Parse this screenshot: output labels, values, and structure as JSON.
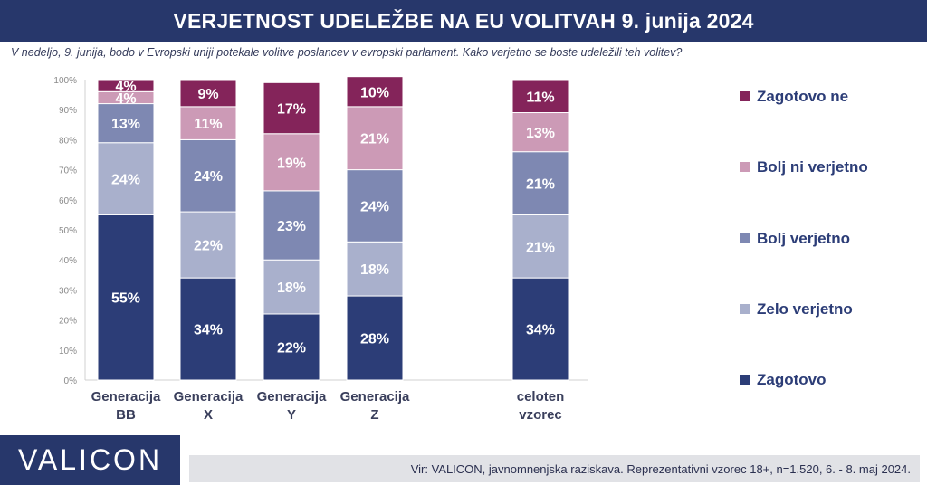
{
  "header": {
    "title": "VERJETNOST UDELEŽBE NA EU VOLITVAH 9. junija 2024"
  },
  "subtitle": "V nedeljo, 9. junija, bodo v Evropski uniji potekale volitve poslancev v evropski parlament.  Kako verjetno se boste udeležili teh volitev?",
  "footer": {
    "logo_text": "VALICON",
    "source": "Vir: VALICON, javnomnenjska raziskava. Reprezentativni vzorec 18+, n=1.520, 6. - 8. maj 2024."
  },
  "colors": {
    "header_bg": "#27376b",
    "zagotovo": "#2c3d77",
    "zelo_verjetno": "#a9b0cc",
    "bolj_verjetno": "#7e88b2",
    "bolj_ni_verjetno": "#cc9ab6",
    "zagotovo_ne": "#84245a"
  },
  "chart_data": {
    "type": "bar",
    "stacked": true,
    "normalized": true,
    "categories": [
      [
        "Generacija",
        "BB"
      ],
      [
        "Generacija",
        "X"
      ],
      [
        "Generacija",
        "Y"
      ],
      [
        "Generacija",
        "Z"
      ],
      [
        "celoten",
        "vzorec"
      ]
    ],
    "series": [
      {
        "name": "Zagotovo",
        "color": "#2c3d77",
        "values": [
          55,
          34,
          22,
          28,
          34
        ]
      },
      {
        "name": "Zelo verjetno",
        "color": "#a9b0cc",
        "values": [
          24,
          22,
          18,
          18,
          21
        ]
      },
      {
        "name": "Bolj verjetno",
        "color": "#7e88b2",
        "values": [
          13,
          24,
          23,
          24,
          21
        ]
      },
      {
        "name": "Bolj ni verjetno",
        "color": "#cc9ab6",
        "values": [
          4,
          11,
          19,
          21,
          13
        ]
      },
      {
        "name": "Zagotovo ne",
        "color": "#84245a",
        "values": [
          4,
          9,
          17,
          10,
          11
        ]
      }
    ],
    "ylim": [
      0,
      100
    ],
    "yticks": [
      "0%",
      "10%",
      "20%",
      "30%",
      "40%",
      "50%",
      "60%",
      "70%",
      "80%",
      "90%",
      "100%"
    ],
    "legend_position": "right",
    "legend_order": [
      "Zagotovo ne",
      "Bolj ni verjetno",
      "Bolj verjetno",
      "Zelo verjetno",
      "Zagotovo"
    ],
    "grid": false
  }
}
